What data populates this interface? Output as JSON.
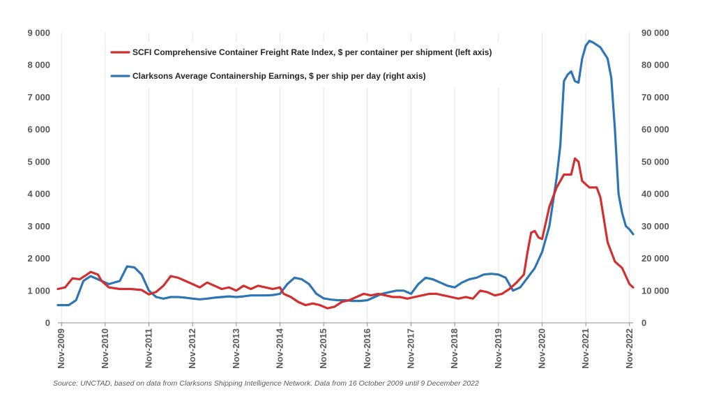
{
  "chart_data": {
    "type": "line",
    "title": "",
    "xlabel": "",
    "ylabel_left": "",
    "ylabel_right": "",
    "x_tick_labels": [
      "Nov-2009",
      "Nov-2010",
      "Nov-2011",
      "Nov-2012",
      "Nov-2013",
      "Nov-2014",
      "Nov-2015",
      "Nov-2016",
      "Nov-2017",
      "Nov-2018",
      "Nov-2019",
      "Nov-2020",
      "Nov-2021",
      "Nov-2022"
    ],
    "x_range": [
      "2009-10",
      "2022-12"
    ],
    "y_left": {
      "range": [
        0,
        9000
      ],
      "ticks": [
        0,
        1000,
        2000,
        3000,
        4000,
        5000,
        6000,
        7000,
        8000,
        9000
      ],
      "tick_labels": [
        "0",
        "1 000",
        "2 000",
        "3 000",
        "4 000",
        "5 000",
        "6 000",
        "7 000",
        "8 000",
        "9 000"
      ]
    },
    "y_right": {
      "range": [
        0,
        90000
      ],
      "ticks": [
        0,
        10000,
        20000,
        30000,
        40000,
        50000,
        60000,
        70000,
        80000,
        90000
      ],
      "tick_labels": [
        "0",
        "10 000",
        "20 000",
        "30 000",
        "40 000",
        "50 000",
        "60 000",
        "70 000",
        "80 000",
        "90 000"
      ]
    },
    "grid": "vertical",
    "legend_position": "top-left",
    "series": [
      {
        "name": "SCFI Comprehensive Container Freight Rate Index, $ per container per shipment (left axis)",
        "axis": "left",
        "color": "#d32f2f",
        "points": [
          [
            "2009-10",
            1050
          ],
          [
            "2009-12",
            1100
          ],
          [
            "2010-02",
            1380
          ],
          [
            "2010-04",
            1350
          ],
          [
            "2010-06",
            1500
          ],
          [
            "2010-07",
            1580
          ],
          [
            "2010-09",
            1500
          ],
          [
            "2010-10",
            1300
          ],
          [
            "2010-12",
            1100
          ],
          [
            "2011-03",
            1050
          ],
          [
            "2011-06",
            1050
          ],
          [
            "2011-09",
            1020
          ],
          [
            "2011-11",
            880
          ],
          [
            "2012-01",
            960
          ],
          [
            "2012-03",
            1150
          ],
          [
            "2012-05",
            1450
          ],
          [
            "2012-07",
            1400
          ],
          [
            "2012-09",
            1300
          ],
          [
            "2012-11",
            1200
          ],
          [
            "2013-01",
            1100
          ],
          [
            "2013-03",
            1250
          ],
          [
            "2013-05",
            1150
          ],
          [
            "2013-07",
            1050
          ],
          [
            "2013-09",
            1100
          ],
          [
            "2013-11",
            1000
          ],
          [
            "2014-01",
            1150
          ],
          [
            "2014-03",
            1050
          ],
          [
            "2014-05",
            1150
          ],
          [
            "2014-07",
            1100
          ],
          [
            "2014-09",
            1050
          ],
          [
            "2014-11",
            1100
          ],
          [
            "2014-12",
            900
          ],
          [
            "2015-02",
            800
          ],
          [
            "2015-04",
            650
          ],
          [
            "2015-06",
            550
          ],
          [
            "2015-08",
            600
          ],
          [
            "2015-10",
            550
          ],
          [
            "2015-12",
            450
          ],
          [
            "2016-02",
            500
          ],
          [
            "2016-04",
            650
          ],
          [
            "2016-06",
            700
          ],
          [
            "2016-08",
            800
          ],
          [
            "2016-10",
            900
          ],
          [
            "2016-12",
            850
          ],
          [
            "2017-02",
            900
          ],
          [
            "2017-04",
            850
          ],
          [
            "2017-06",
            800
          ],
          [
            "2017-08",
            800
          ],
          [
            "2017-10",
            750
          ],
          [
            "2017-12",
            800
          ],
          [
            "2018-02",
            850
          ],
          [
            "2018-04",
            900
          ],
          [
            "2018-06",
            900
          ],
          [
            "2018-08",
            850
          ],
          [
            "2018-10",
            800
          ],
          [
            "2018-12",
            750
          ],
          [
            "2019-02",
            800
          ],
          [
            "2019-04",
            750
          ],
          [
            "2019-06",
            1000
          ],
          [
            "2019-08",
            950
          ],
          [
            "2019-10",
            850
          ],
          [
            "2019-12",
            900
          ],
          [
            "2020-02",
            1050
          ],
          [
            "2020-04",
            1250
          ],
          [
            "2020-06",
            1500
          ],
          [
            "2020-07",
            2200
          ],
          [
            "2020-08",
            2800
          ],
          [
            "2020-09",
            2850
          ],
          [
            "2020-10",
            2650
          ],
          [
            "2020-11",
            2600
          ],
          [
            "2021-01",
            3600
          ],
          [
            "2021-03",
            4200
          ],
          [
            "2021-05",
            4600
          ],
          [
            "2021-07",
            4600
          ],
          [
            "2021-08",
            5100
          ],
          [
            "2021-09",
            5000
          ],
          [
            "2021-10",
            4400
          ],
          [
            "2021-12",
            4200
          ],
          [
            "2022-02",
            4200
          ],
          [
            "2022-03",
            3900
          ],
          [
            "2022-05",
            2500
          ],
          [
            "2022-07",
            1900
          ],
          [
            "2022-09",
            1700
          ],
          [
            "2022-11",
            1200
          ],
          [
            "2022-12",
            1100
          ]
        ]
      },
      {
        "name": "Clarksons Average Containership Earnings, $ per ship per day (right axis)",
        "axis": "right",
        "color": "#2e75b6",
        "points": [
          [
            "2009-10",
            5500
          ],
          [
            "2010-01",
            5500
          ],
          [
            "2010-03",
            7000
          ],
          [
            "2010-05",
            13000
          ],
          [
            "2010-07",
            14500
          ],
          [
            "2010-09",
            13500
          ],
          [
            "2010-10",
            13000
          ],
          [
            "2010-12",
            12000
          ],
          [
            "2011-03",
            13000
          ],
          [
            "2011-05",
            17500
          ],
          [
            "2011-07",
            17200
          ],
          [
            "2011-09",
            15000
          ],
          [
            "2011-11",
            10000
          ],
          [
            "2012-01",
            8000
          ],
          [
            "2012-03",
            7500
          ],
          [
            "2012-05",
            8000
          ],
          [
            "2012-07",
            8000
          ],
          [
            "2012-09",
            7800
          ],
          [
            "2012-11",
            7500
          ],
          [
            "2013-01",
            7300
          ],
          [
            "2013-03",
            7500
          ],
          [
            "2013-05",
            7800
          ],
          [
            "2013-07",
            8000
          ],
          [
            "2013-09",
            8200
          ],
          [
            "2013-11",
            8000
          ],
          [
            "2014-01",
            8200
          ],
          [
            "2014-03",
            8500
          ],
          [
            "2014-05",
            8500
          ],
          [
            "2014-07",
            8500
          ],
          [
            "2014-09",
            8600
          ],
          [
            "2014-11",
            9000
          ],
          [
            "2015-01",
            12000
          ],
          [
            "2015-03",
            14000
          ],
          [
            "2015-05",
            13500
          ],
          [
            "2015-07",
            12000
          ],
          [
            "2015-09",
            9000
          ],
          [
            "2015-11",
            7600
          ],
          [
            "2016-01",
            7200
          ],
          [
            "2016-03",
            7000
          ],
          [
            "2016-05",
            7000
          ],
          [
            "2016-07",
            6800
          ],
          [
            "2016-09",
            6800
          ],
          [
            "2016-11",
            7000
          ],
          [
            "2017-01",
            8000
          ],
          [
            "2017-03",
            9000
          ],
          [
            "2017-05",
            9500
          ],
          [
            "2017-07",
            10000
          ],
          [
            "2017-09",
            10000
          ],
          [
            "2017-11",
            9000
          ],
          [
            "2018-01",
            12000
          ],
          [
            "2018-03",
            14000
          ],
          [
            "2018-05",
            13500
          ],
          [
            "2018-07",
            12500
          ],
          [
            "2018-09",
            11500
          ],
          [
            "2018-11",
            11000
          ],
          [
            "2019-01",
            12500
          ],
          [
            "2019-03",
            13500
          ],
          [
            "2019-05",
            14000
          ],
          [
            "2019-07",
            15000
          ],
          [
            "2019-09",
            15200
          ],
          [
            "2019-11",
            15000
          ],
          [
            "2020-01",
            14000
          ],
          [
            "2020-03",
            10000
          ],
          [
            "2020-05",
            11000
          ],
          [
            "2020-07",
            14000
          ],
          [
            "2020-09",
            17000
          ],
          [
            "2020-11",
            22000
          ],
          [
            "2021-01",
            30000
          ],
          [
            "2021-03",
            45000
          ],
          [
            "2021-04",
            55000
          ],
          [
            "2021-05",
            75000
          ],
          [
            "2021-06",
            77000
          ],
          [
            "2021-07",
            78000
          ],
          [
            "2021-08",
            75000
          ],
          [
            "2021-09",
            74500
          ],
          [
            "2021-10",
            82000
          ],
          [
            "2021-11",
            86000
          ],
          [
            "2021-12",
            87500
          ],
          [
            "2022-01",
            87000
          ],
          [
            "2022-03",
            85500
          ],
          [
            "2022-05",
            82000
          ],
          [
            "2022-06",
            76000
          ],
          [
            "2022-07",
            60000
          ],
          [
            "2022-08",
            40000
          ],
          [
            "2022-09",
            34000
          ],
          [
            "2022-10",
            30000
          ],
          [
            "2022-11",
            29000
          ],
          [
            "2022-12",
            27500
          ]
        ]
      }
    ]
  },
  "source_note": "Source: UNCTAD, based on data from Clarksons Shipping Intelligence Network. Data from 16 October 2009 until 9 December 2022"
}
